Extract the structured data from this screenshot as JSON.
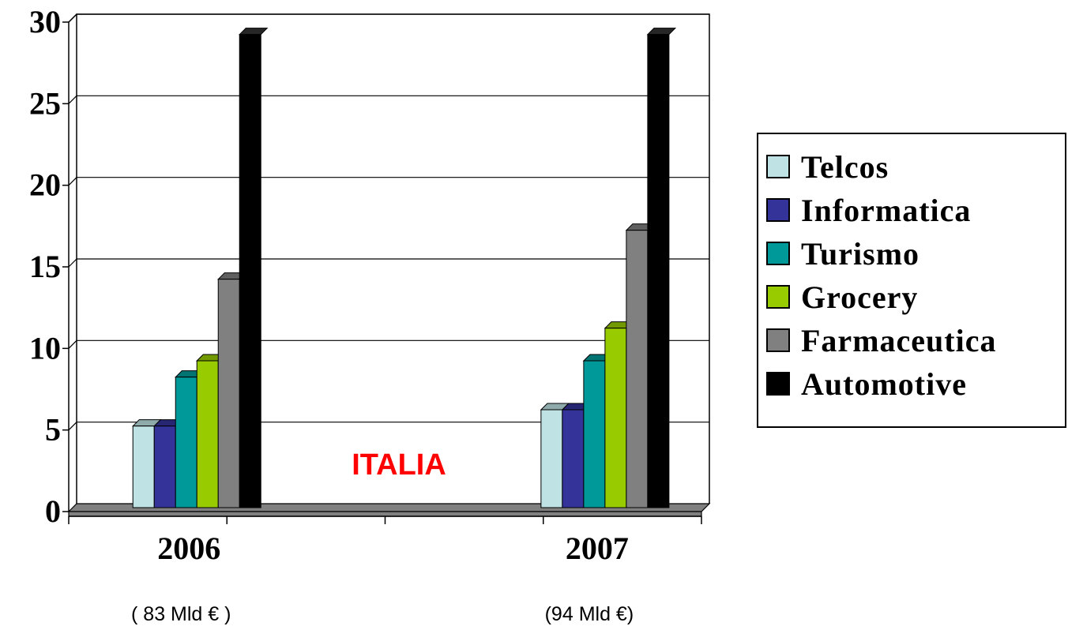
{
  "chart_data": {
    "type": "bar",
    "categories": [
      "2006",
      "2007"
    ],
    "category_sublabels": [
      "( 83 Mld € )",
      "(94 Mld €)"
    ],
    "series": [
      {
        "name": "Telcos",
        "values": [
          5,
          6
        ],
        "color": "#bfe2e4"
      },
      {
        "name": "Informatica",
        "values": [
          5,
          6
        ],
        "color": "#333399"
      },
      {
        "name": "Turismo",
        "values": [
          8,
          9
        ],
        "color": "#009999"
      },
      {
        "name": "Grocery",
        "values": [
          9,
          11
        ],
        "color": "#99cc00"
      },
      {
        "name": "Farmaceutica",
        "values": [
          14,
          17
        ],
        "color": "#808080"
      },
      {
        "name": "Automotive",
        "values": [
          29,
          29
        ],
        "color": "#000000"
      }
    ],
    "annotation": {
      "text": "ITALIA",
      "color": "#ff0000"
    },
    "yticks": [
      "0",
      "5",
      "10",
      "15",
      "20",
      "25",
      "30"
    ],
    "ylim": [
      0,
      30
    ],
    "grid": true,
    "legend_position": "right"
  }
}
